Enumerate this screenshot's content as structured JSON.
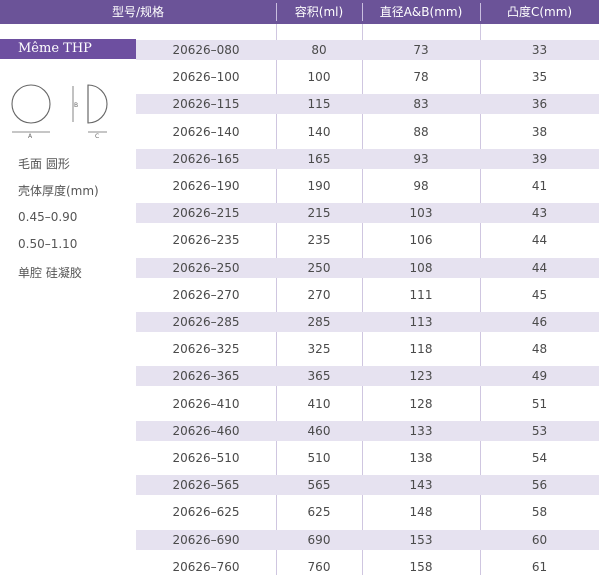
{
  "header": {
    "col_model": "型号/规格",
    "col_volume": "容积(ml)",
    "col_diameter": "直径A&B(mm)",
    "col_projection": "凸度C(mm)"
  },
  "product": {
    "name": "Même THP",
    "diagram_labels": {
      "a": "A",
      "b": "B",
      "c": "C"
    },
    "specs": [
      "毛面 圆形",
      "壳体厚度(mm)",
      "0.45–0.90",
      "0.50–1.10",
      "单腔 硅凝胶"
    ]
  },
  "rows": [
    {
      "model": "20626–080",
      "volume": "80",
      "diameter": "73",
      "projection": "33"
    },
    {
      "model": "20626–100",
      "volume": "100",
      "diameter": "78",
      "projection": "35"
    },
    {
      "model": "20626–115",
      "volume": "115",
      "diameter": "83",
      "projection": "36"
    },
    {
      "model": "20626–140",
      "volume": "140",
      "diameter": "88",
      "projection": "38"
    },
    {
      "model": "20626–165",
      "volume": "165",
      "diameter": "93",
      "projection": "39"
    },
    {
      "model": "20626–190",
      "volume": "190",
      "diameter": "98",
      "projection": "41"
    },
    {
      "model": "20626–215",
      "volume": "215",
      "diameter": "103",
      "projection": "43"
    },
    {
      "model": "20626–235",
      "volume": "235",
      "diameter": "106",
      "projection": "44"
    },
    {
      "model": "20626–250",
      "volume": "250",
      "diameter": "108",
      "projection": "44"
    },
    {
      "model": "20626–270",
      "volume": "270",
      "diameter": "111",
      "projection": "45"
    },
    {
      "model": "20626–285",
      "volume": "285",
      "diameter": "113",
      "projection": "46"
    },
    {
      "model": "20626–325",
      "volume": "325",
      "diameter": "118",
      "projection": "48"
    },
    {
      "model": "20626–365",
      "volume": "365",
      "diameter": "123",
      "projection": "49"
    },
    {
      "model": "20626–410",
      "volume": "410",
      "diameter": "128",
      "projection": "51"
    },
    {
      "model": "20626–460",
      "volume": "460",
      "diameter": "133",
      "projection": "53"
    },
    {
      "model": "20626–510",
      "volume": "510",
      "diameter": "138",
      "projection": "54"
    },
    {
      "model": "20626–565",
      "volume": "565",
      "diameter": "143",
      "projection": "56"
    },
    {
      "model": "20626–625",
      "volume": "625",
      "diameter": "148",
      "projection": "58"
    },
    {
      "model": "20626–690",
      "volume": "690",
      "diameter": "153",
      "projection": "60"
    },
    {
      "model": "20626–760",
      "volume": "760",
      "diameter": "158",
      "projection": "61"
    }
  ]
}
